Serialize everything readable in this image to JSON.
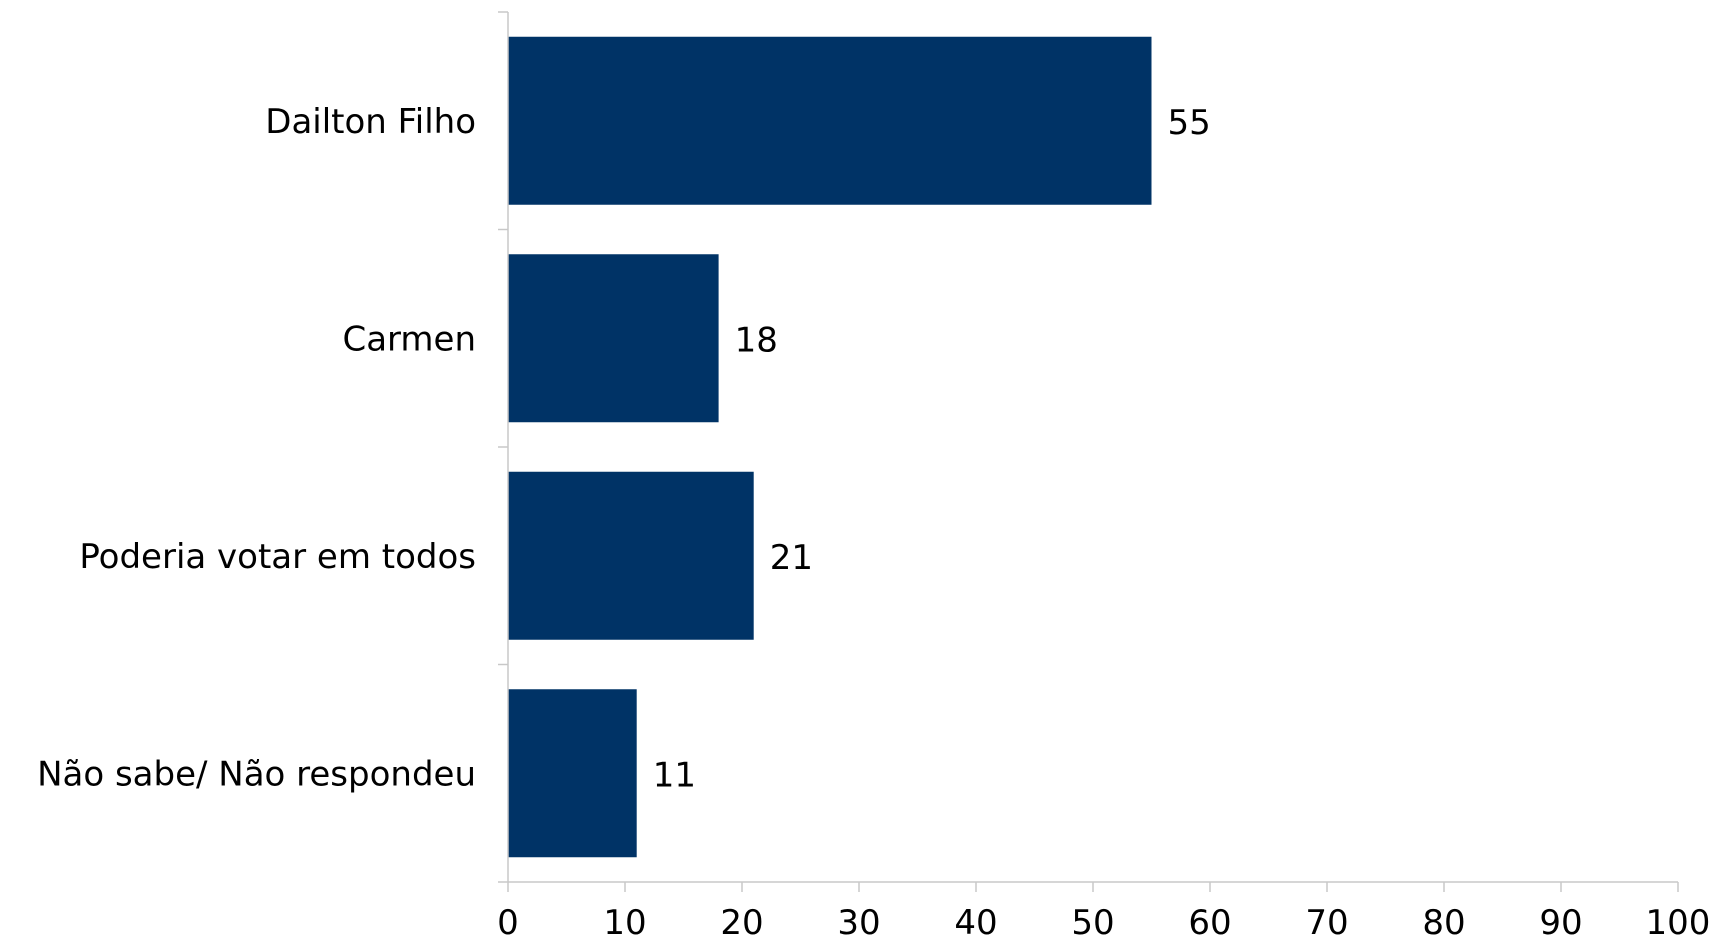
{
  "chart_data": {
    "type": "bar",
    "orientation": "horizontal",
    "categories": [
      "Dailton Filho",
      "Carmen",
      "Poderia votar em todos",
      "Não sabe/ Não respondeu"
    ],
    "values": [
      55,
      18,
      21,
      11
    ],
    "data_labels": [
      "55",
      "18",
      "21",
      "11"
    ],
    "xlim": [
      0,
      100
    ],
    "x_ticks": [
      0,
      10,
      20,
      30,
      40,
      50,
      60,
      70,
      80,
      90,
      100
    ],
    "bar_color": "#003366",
    "grid": false,
    "legend": "none"
  }
}
